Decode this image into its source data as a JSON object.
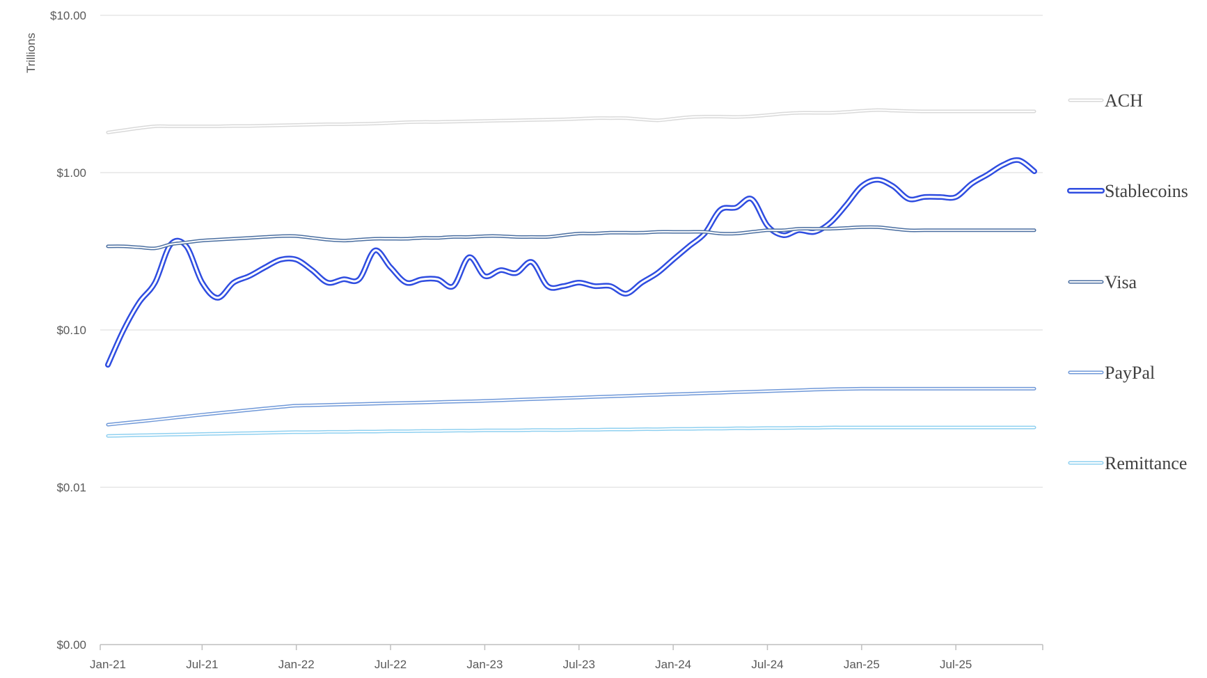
{
  "chart_data": {
    "type": "line",
    "title": "",
    "xlabel": "",
    "ylabel": "Trillions",
    "y_scale": "log",
    "ylim": [
      0.001,
      10
    ],
    "y_ticks": [
      {
        "value": 10,
        "label": "$10.00"
      },
      {
        "value": 1,
        "label": "$1.00"
      },
      {
        "value": 0.1,
        "label": "$0.10"
      },
      {
        "value": 0.01,
        "label": "$0.01"
      },
      {
        "value": 0.001,
        "label": "$0.00"
      }
    ],
    "x_range": [
      "2021-01",
      "2025-12"
    ],
    "x_ticks": [
      "Jan-21",
      "Jul-21",
      "Jan-22",
      "Jul-22",
      "Jan-23",
      "Jul-23",
      "Jan-24",
      "Jul-24",
      "Jan-25",
      "Jul-25"
    ],
    "grid": true,
    "legend": "right",
    "x": [
      "2021-01",
      "2021-02",
      "2021-03",
      "2021-04",
      "2021-05",
      "2021-06",
      "2021-07",
      "2021-08",
      "2021-09",
      "2021-10",
      "2021-11",
      "2021-12",
      "2022-01",
      "2022-02",
      "2022-03",
      "2022-04",
      "2022-05",
      "2022-06",
      "2022-07",
      "2022-08",
      "2022-09",
      "2022-10",
      "2022-11",
      "2022-12",
      "2023-01",
      "2023-02",
      "2023-03",
      "2023-04",
      "2023-05",
      "2023-06",
      "2023-07",
      "2023-08",
      "2023-09",
      "2023-10",
      "2023-11",
      "2023-12",
      "2024-01",
      "2024-02",
      "2024-03",
      "2024-04",
      "2024-05",
      "2024-06",
      "2024-07",
      "2024-08",
      "2024-09",
      "2024-10",
      "2024-11",
      "2024-12",
      "2025-01",
      "2025-02",
      "2025-03",
      "2025-04",
      "2025-05",
      "2025-06",
      "2025-07",
      "2025-08",
      "2025-09",
      "2025-10",
      "2025-11",
      "2025-12"
    ],
    "series": [
      {
        "name": "ACH",
        "color": "#d9d9d9",
        "values": [
          1.8,
          1.86,
          1.92,
          1.97,
          1.97,
          1.97,
          1.97,
          1.97,
          1.98,
          1.98,
          1.99,
          2.0,
          2.01,
          2.02,
          2.03,
          2.03,
          2.04,
          2.05,
          2.07,
          2.09,
          2.1,
          2.1,
          2.11,
          2.12,
          2.13,
          2.14,
          2.15,
          2.16,
          2.17,
          2.18,
          2.2,
          2.22,
          2.22,
          2.22,
          2.18,
          2.15,
          2.2,
          2.25,
          2.27,
          2.27,
          2.26,
          2.28,
          2.32,
          2.37,
          2.4,
          2.4,
          2.4,
          2.43,
          2.47,
          2.5,
          2.48,
          2.46,
          2.45,
          2.45,
          2.45,
          2.45,
          2.45,
          2.45,
          2.45,
          2.45
        ]
      },
      {
        "name": "Stablecoins",
        "color": "#2f4de0",
        "values": [
          0.06,
          0.1,
          0.15,
          0.2,
          0.35,
          0.34,
          0.2,
          0.16,
          0.2,
          0.22,
          0.25,
          0.28,
          0.28,
          0.24,
          0.2,
          0.21,
          0.21,
          0.32,
          0.25,
          0.2,
          0.21,
          0.21,
          0.19,
          0.29,
          0.22,
          0.24,
          0.23,
          0.27,
          0.19,
          0.19,
          0.2,
          0.19,
          0.19,
          0.17,
          0.2,
          0.23,
          0.28,
          0.34,
          0.41,
          0.58,
          0.6,
          0.68,
          0.46,
          0.4,
          0.43,
          0.42,
          0.48,
          0.62,
          0.82,
          0.9,
          0.82,
          0.68,
          0.7,
          0.7,
          0.7,
          0.85,
          0.97,
          1.12,
          1.2,
          1.02
        ]
      },
      {
        "name": "Visa",
        "color": "#4a6ea0",
        "values": [
          0.34,
          0.34,
          0.335,
          0.33,
          0.35,
          0.36,
          0.37,
          0.375,
          0.38,
          0.385,
          0.39,
          0.395,
          0.395,
          0.385,
          0.375,
          0.37,
          0.375,
          0.38,
          0.38,
          0.38,
          0.385,
          0.385,
          0.39,
          0.39,
          0.395,
          0.395,
          0.39,
          0.39,
          0.39,
          0.4,
          0.41,
          0.41,
          0.415,
          0.415,
          0.415,
          0.42,
          0.42,
          0.42,
          0.42,
          0.41,
          0.41,
          0.42,
          0.43,
          0.43,
          0.44,
          0.44,
          0.44,
          0.445,
          0.45,
          0.45,
          0.44,
          0.43,
          0.43,
          0.43,
          0.43,
          0.43,
          0.43,
          0.43,
          0.43,
          0.43
        ]
      },
      {
        "name": "PayPal",
        "color": "#6f98d8",
        "values": [
          0.025,
          0.0256,
          0.0262,
          0.0268,
          0.0275,
          0.0282,
          0.0289,
          0.0296,
          0.0303,
          0.031,
          0.0317,
          0.0324,
          0.033,
          0.0332,
          0.0334,
          0.0336,
          0.0338,
          0.034,
          0.0342,
          0.0344,
          0.0346,
          0.0348,
          0.035,
          0.0352,
          0.0354,
          0.0357,
          0.036,
          0.0363,
          0.0366,
          0.0369,
          0.0372,
          0.0375,
          0.0378,
          0.0381,
          0.0384,
          0.0387,
          0.039,
          0.0393,
          0.0396,
          0.0399,
          0.0402,
          0.0405,
          0.0408,
          0.0411,
          0.0414,
          0.0417,
          0.042,
          0.0422,
          0.0423,
          0.0423,
          0.0423,
          0.0423,
          0.0423,
          0.0423,
          0.0423,
          0.0423,
          0.0423,
          0.0423,
          0.0423,
          0.0423
        ]
      },
      {
        "name": "Remittance",
        "color": "#8fd0f0",
        "values": [
          0.0212,
          0.0213,
          0.0214,
          0.0215,
          0.0216,
          0.0217,
          0.0218,
          0.0219,
          0.022,
          0.0221,
          0.0222,
          0.0223,
          0.0224,
          0.0224,
          0.0225,
          0.0225,
          0.0226,
          0.0226,
          0.0227,
          0.0227,
          0.0228,
          0.0228,
          0.0229,
          0.0229,
          0.023,
          0.023,
          0.023,
          0.0231,
          0.0231,
          0.0231,
          0.0232,
          0.0232,
          0.0233,
          0.0233,
          0.0234,
          0.0234,
          0.0235,
          0.0235,
          0.0236,
          0.0236,
          0.0237,
          0.0237,
          0.0238,
          0.0238,
          0.0239,
          0.0239,
          0.024,
          0.024,
          0.024,
          0.024,
          0.024,
          0.024,
          0.024,
          0.024,
          0.024,
          0.024,
          0.024,
          0.024,
          0.024,
          0.024
        ]
      }
    ]
  }
}
